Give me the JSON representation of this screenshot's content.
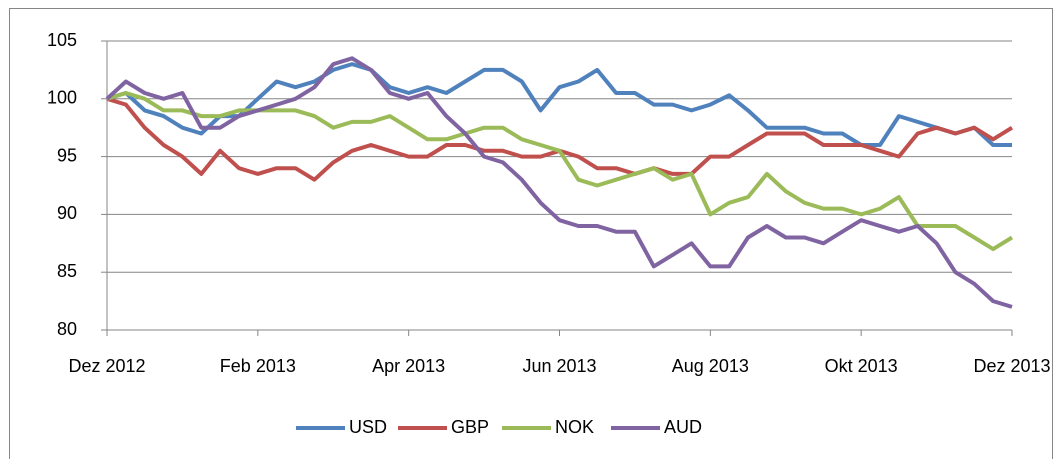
{
  "chart_data": {
    "type": "line",
    "categories": [
      "Dez 2012",
      null,
      null,
      null,
      null,
      null,
      null,
      null,
      "Feb 2013",
      null,
      null,
      null,
      null,
      null,
      null,
      null,
      "Apr 2013",
      null,
      null,
      null,
      null,
      null,
      null,
      null,
      "Jun 2013",
      null,
      null,
      null,
      null,
      null,
      null,
      null,
      "Aug 2013",
      null,
      null,
      null,
      null,
      null,
      null,
      null,
      "Okt 2013",
      null,
      null,
      null,
      null,
      null,
      null,
      null,
      "Dez 2013"
    ],
    "series": [
      {
        "name": "USD",
        "color": "#4f81bd",
        "values": [
          100,
          100.5,
          99,
          98.5,
          97.5,
          97,
          98.5,
          98.5,
          100,
          101.5,
          101,
          101.5,
          102.5,
          103,
          102.5,
          101,
          100.5,
          101,
          100.5,
          101.5,
          102.5,
          102.5,
          101.5,
          99,
          101,
          101.5,
          102.5,
          100.5,
          100.5,
          99.5,
          99.5,
          99,
          99.5,
          100.3,
          99,
          97.5,
          97.5,
          97.5,
          97,
          97,
          96,
          96,
          98.5,
          98,
          97.5,
          97,
          97.5,
          96,
          96
        ]
      },
      {
        "name": "GBP",
        "color": "#c0504d",
        "values": [
          100,
          99.5,
          97.5,
          96,
          95,
          93.5,
          95.5,
          94,
          93.5,
          94,
          94,
          93,
          94.5,
          95.5,
          96,
          95.5,
          95,
          95,
          96,
          96,
          95.5,
          95.5,
          95,
          95,
          95.5,
          95,
          94,
          94,
          93.5,
          94,
          93.5,
          93.5,
          95,
          95,
          96,
          97,
          97,
          97,
          96,
          96,
          96,
          95.5,
          95,
          97,
          97.5,
          97,
          97.5,
          96.5,
          97.5
        ]
      },
      {
        "name": "NOK",
        "color": "#9bbb59",
        "values": [
          100,
          100.5,
          100,
          99,
          99,
          98.5,
          98.5,
          99,
          99,
          99,
          99,
          98.5,
          97.5,
          98,
          98,
          98.5,
          97.5,
          96.5,
          96.5,
          97,
          97.5,
          97.5,
          96.5,
          96,
          95.5,
          93,
          92.5,
          93,
          93.5,
          94,
          93,
          93.5,
          90,
          91,
          91.5,
          93.5,
          92,
          91,
          90.5,
          90.5,
          90,
          90.5,
          91.5,
          89,
          89,
          89,
          88,
          87,
          88
        ]
      },
      {
        "name": "AUD",
        "color": "#8064a2",
        "values": [
          100,
          101.5,
          100.5,
          100,
          100.5,
          97.5,
          97.5,
          98.5,
          99,
          99.5,
          100,
          101,
          103,
          103.5,
          102.5,
          100.5,
          100,
          100.5,
          98.5,
          97,
          95,
          94.5,
          93,
          91,
          89.5,
          89,
          89,
          88.5,
          88.5,
          85.5,
          86.5,
          87.5,
          85.5,
          85.5,
          88,
          89,
          88,
          88,
          87.5,
          88.5,
          89.5,
          89,
          88.5,
          89,
          87.5,
          85,
          84,
          82.5,
          82
        ]
      }
    ],
    "ylim": [
      80,
      105
    ],
    "yticks": [
      80,
      85,
      90,
      95,
      100,
      105
    ],
    "grid": true,
    "legend": "bottom"
  }
}
